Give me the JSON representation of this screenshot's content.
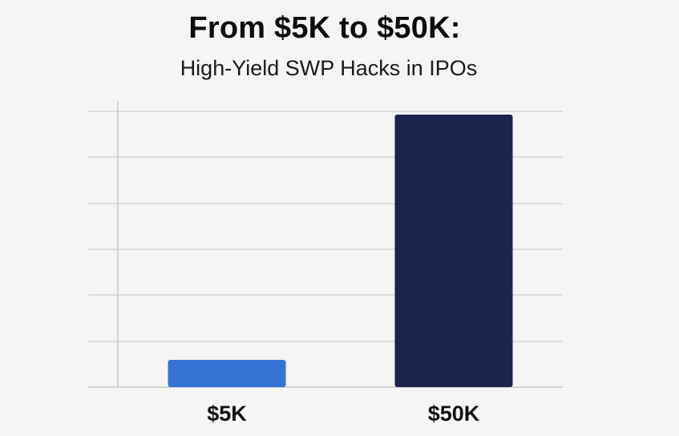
{
  "header": {
    "title": "From $5K to $50K:",
    "subtitle": "High-Yield SWP Hacks in IPOs"
  },
  "chart_data": {
    "type": "bar",
    "title": "From $5K to $50K:",
    "subtitle": "High-Yield SWP Hacks in IPOs",
    "categories": [
      "$5K",
      "$50K"
    ],
    "values": [
      5,
      50
    ],
    "colors": [
      "#3574d4",
      "#1a244d"
    ],
    "ylim": [
      0,
      52.5
    ],
    "grid": true,
    "legend": "none",
    "xlabel": "",
    "ylabel": ""
  },
  "colors": {
    "background": "#f5f5f5",
    "grid": "#d4d4d4",
    "axis": "#c8c8c8"
  }
}
